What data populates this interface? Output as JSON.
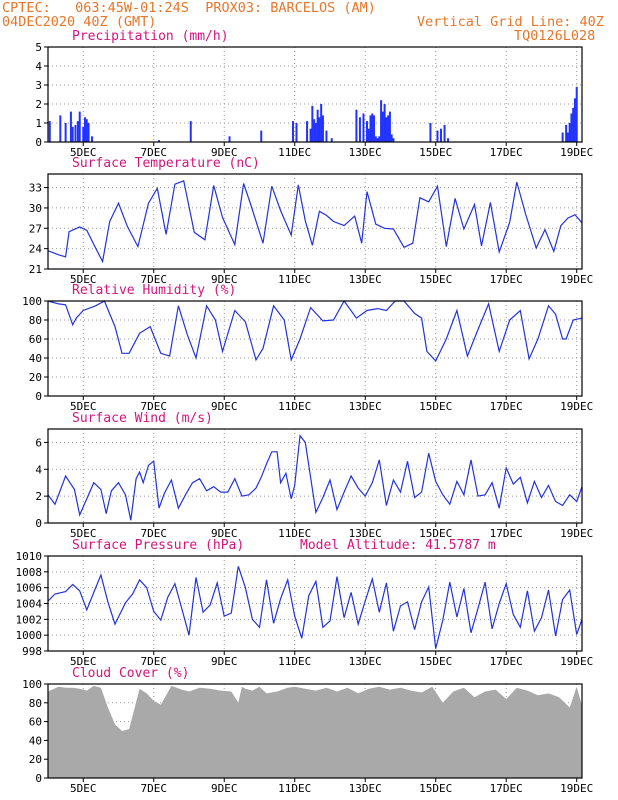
{
  "header": {
    "line1_left": "CPTEC:   063:45W-01:24S  PROX03: BARCELOS (AM)",
    "line2_left": "04DEC2020 40Z (GMT)",
    "line2_right": "Vertical Grid Line: 40Z",
    "line3_right": "TQ0126L028"
  },
  "date_ticks": [
    "5DEC",
    "7DEC",
    "9DEC",
    "11DEC",
    "13DEC",
    "15DEC",
    "17DEC",
    "19DEC"
  ],
  "colors": {
    "line": "#2233dd",
    "bar": "#2233ff",
    "cloud": "#a9a9a9",
    "title": "#d4147e",
    "header": "#e8762a"
  },
  "chart_data": [
    {
      "type": "bar",
      "title": "Precipitation (mm/h)",
      "ylim": [
        0,
        5
      ],
      "yticks": [
        0,
        1,
        2,
        3,
        4,
        5
      ],
      "x_range_days": [
        4.0,
        19.15
      ],
      "x": [
        4.05,
        4.35,
        4.5,
        4.65,
        4.7,
        4.78,
        4.85,
        4.9,
        5.0,
        5.05,
        5.1,
        5.15,
        5.25,
        7.15,
        8.05,
        9.15,
        10.05,
        10.95,
        11.05,
        11.35,
        11.45,
        11.5,
        11.55,
        11.6,
        11.65,
        11.7,
        11.75,
        11.8,
        11.9,
        12.05,
        12.75,
        12.85,
        12.95,
        13.05,
        13.1,
        13.15,
        13.2,
        13.25,
        13.3,
        13.35,
        13.4,
        13.45,
        13.5,
        13.55,
        13.6,
        13.65,
        13.7,
        13.75,
        13.8,
        14.85,
        15.05,
        15.15,
        15.25,
        15.35,
        18.6,
        18.7,
        18.75,
        18.8,
        18.85,
        18.9,
        18.95,
        19.0
      ],
      "values": [
        1.1,
        1.4,
        1.0,
        1.6,
        0.8,
        0.9,
        1.1,
        1.6,
        0.8,
        1.3,
        1.2,
        1.0,
        0.3,
        0.1,
        1.1,
        0.3,
        0.6,
        1.1,
        1.0,
        1.1,
        0.7,
        1.9,
        1.2,
        1.0,
        1.7,
        1.3,
        2.0,
        1.4,
        0.6,
        0.2,
        1.7,
        1.3,
        1.5,
        1.1,
        0.7,
        1.4,
        1.5,
        1.4,
        0.3,
        0.2,
        0.3,
        2.2,
        1.6,
        2.0,
        1.3,
        1.4,
        1.6,
        0.4,
        0.2,
        1.0,
        0.6,
        0.7,
        0.9,
        0.2,
        0.5,
        0.9,
        0.5,
        1.0,
        1.5,
        1.8,
        2.3,
        2.9
      ]
    },
    {
      "type": "line",
      "title": "Surface Temperature (nC)",
      "ylim": [
        21,
        35
      ],
      "yticks": [
        21,
        24,
        27,
        30,
        33
      ],
      "x_range_days": [
        4.0,
        19.15
      ],
      "x": [
        4.0,
        4.3,
        4.5,
        4.6,
        4.9,
        5.1,
        5.35,
        5.55,
        5.75,
        6.0,
        6.25,
        6.55,
        6.85,
        7.1,
        7.35,
        7.6,
        7.85,
        8.15,
        8.45,
        8.7,
        8.95,
        9.3,
        9.55,
        9.75,
        10.1,
        10.35,
        10.6,
        10.9,
        11.1,
        11.3,
        11.5,
        11.7,
        11.9,
        12.1,
        12.4,
        12.7,
        12.9,
        13.05,
        13.3,
        13.55,
        13.8,
        14.1,
        14.35,
        14.55,
        14.8,
        15.05,
        15.3,
        15.55,
        15.8,
        16.1,
        16.3,
        16.55,
        16.8,
        17.1,
        17.3,
        17.55,
        17.85,
        18.1,
        18.35,
        18.55,
        18.75,
        18.95,
        19.15
      ],
      "values": [
        23.7,
        23.1,
        22.8,
        26.5,
        27.2,
        26.7,
        24.1,
        22.1,
        28.0,
        30.7,
        27.3,
        24.3,
        30.7,
        32.9,
        26.1,
        33.5,
        34.0,
        26.4,
        25.3,
        33.3,
        28.6,
        24.6,
        33.6,
        30.5,
        24.8,
        33.2,
        29.6,
        26.0,
        33.4,
        28.1,
        24.5,
        29.5,
        28.9,
        28.0,
        27.4,
        28.8,
        24.8,
        32.4,
        27.6,
        27.0,
        26.9,
        24.2,
        24.8,
        31.5,
        30.9,
        33.2,
        24.3,
        31.4,
        26.9,
        30.5,
        24.4,
        30.8,
        23.5,
        27.9,
        33.8,
        29.1,
        24.1,
        26.8,
        23.6,
        27.4,
        28.5,
        29.0,
        27.8
      ]
    },
    {
      "type": "line",
      "title": "Relative Humidity (%)",
      "ylim": [
        0,
        100
      ],
      "yticks": [
        0,
        20,
        40,
        60,
        80,
        100
      ],
      "x_range_days": [
        4.0,
        19.15
      ],
      "x": [
        4.0,
        4.3,
        4.5,
        4.7,
        4.8,
        5.0,
        5.35,
        5.6,
        5.9,
        6.1,
        6.3,
        6.6,
        6.9,
        7.2,
        7.45,
        7.7,
        7.95,
        8.2,
        8.5,
        8.75,
        8.95,
        9.3,
        9.6,
        9.9,
        10.1,
        10.4,
        10.7,
        10.9,
        11.15,
        11.45,
        11.8,
        12.1,
        12.4,
        12.75,
        13.05,
        13.35,
        13.6,
        13.85,
        14.1,
        14.4,
        14.6,
        14.75,
        15.0,
        15.3,
        15.6,
        15.9,
        16.2,
        16.5,
        16.8,
        17.1,
        17.4,
        17.65,
        17.9,
        18.2,
        18.4,
        18.6,
        18.7,
        18.9,
        19.15
      ],
      "values": [
        100,
        97,
        96,
        75,
        82,
        90,
        95,
        100,
        73,
        45,
        45,
        66,
        73,
        45,
        42,
        95,
        65,
        40,
        95,
        80,
        47,
        90,
        78,
        38,
        50,
        95,
        80,
        38,
        60,
        93,
        79,
        80,
        100,
        82,
        90,
        92,
        90,
        100,
        100,
        87,
        82,
        47,
        37,
        60,
        90,
        42,
        70,
        97,
        47,
        80,
        90,
        39,
        60,
        95,
        86,
        60,
        60,
        80,
        82
      ]
    },
    {
      "type": "line",
      "title": "Surface Wind (m/s)",
      "ylim": [
        0,
        7
      ],
      "yticks": [
        0,
        2,
        4,
        6
      ],
      "x_range_days": [
        4.0,
        19.15
      ],
      "x": [
        4.0,
        4.2,
        4.4,
        4.5,
        4.6,
        4.75,
        4.9,
        5.1,
        5.3,
        5.5,
        5.65,
        5.8,
        6.0,
        6.2,
        6.35,
        6.5,
        6.6,
        6.7,
        6.85,
        7.0,
        7.15,
        7.3,
        7.5,
        7.7,
        7.9,
        8.1,
        8.3,
        8.5,
        8.7,
        8.9,
        9.1,
        9.3,
        9.5,
        9.7,
        9.9,
        10.05,
        10.2,
        10.35,
        10.5,
        10.6,
        10.75,
        10.9,
        11.0,
        11.15,
        11.3,
        11.45,
        11.6,
        11.8,
        12.0,
        12.2,
        12.4,
        12.6,
        12.8,
        13.0,
        13.2,
        13.4,
        13.6,
        13.8,
        14.0,
        14.2,
        14.4,
        14.6,
        14.8,
        15.0,
        15.2,
        15.4,
        15.6,
        15.8,
        16.0,
        16.2,
        16.4,
        16.6,
        16.8,
        17.0,
        17.2,
        17.4,
        17.6,
        17.8,
        18.0,
        18.2,
        18.4,
        18.6,
        18.8,
        19.0,
        19.15
      ],
      "values": [
        2.1,
        1.4,
        2.8,
        3.5,
        3.1,
        2.5,
        0.6,
        1.8,
        3.0,
        2.5,
        0.7,
        2.4,
        3.0,
        2.1,
        0.2,
        3.3,
        3.8,
        3.0,
        4.3,
        4.6,
        1.1,
        2.2,
        3.2,
        1.1,
        2.1,
        3.0,
        3.3,
        2.4,
        2.7,
        2.3,
        2.3,
        3.3,
        2.0,
        2.1,
        2.6,
        3.4,
        4.4,
        5.3,
        5.3,
        3.0,
        3.7,
        1.8,
        2.8,
        6.5,
        6.0,
        3.4,
        0.8,
        1.9,
        3.2,
        1.0,
        2.3,
        3.5,
        2.6,
        2.0,
        3.0,
        4.7,
        1.3,
        3.2,
        2.3,
        4.6,
        1.9,
        2.3,
        5.2,
        3.1,
        2.1,
        1.4,
        3.1,
        2.1,
        4.7,
        2.0,
        2.1,
        3.0,
        1.1,
        4.1,
        2.9,
        3.4,
        1.5,
        3.1,
        1.9,
        2.8,
        1.6,
        1.3,
        2.1,
        1.6,
        2.7
      ]
    },
    {
      "type": "line",
      "title": "Surface Pressure (hPa)",
      "annotation": "Model Altitude: 41.5787 m",
      "ylim": [
        998,
        1010
      ],
      "yticks": [
        998,
        1000,
        1002,
        1004,
        1006,
        1008,
        1010
      ],
      "x_range_days": [
        4.0,
        19.15
      ],
      "x": [
        4.0,
        4.2,
        4.5,
        4.7,
        4.9,
        5.1,
        5.3,
        5.5,
        5.7,
        5.9,
        6.2,
        6.4,
        6.6,
        6.8,
        7.0,
        7.2,
        7.4,
        7.6,
        7.8,
        8.0,
        8.2,
        8.4,
        8.6,
        8.8,
        9.0,
        9.2,
        9.4,
        9.6,
        9.8,
        10.0,
        10.2,
        10.4,
        10.6,
        10.8,
        11.0,
        11.2,
        11.4,
        11.6,
        11.8,
        12.0,
        12.2,
        12.4,
        12.6,
        12.8,
        13.0,
        13.2,
        13.4,
        13.6,
        13.8,
        14.0,
        14.2,
        14.4,
        14.6,
        14.8,
        15.0,
        15.2,
        15.4,
        15.6,
        15.8,
        16.0,
        16.2,
        16.4,
        16.6,
        16.8,
        17.0,
        17.2,
        17.4,
        17.6,
        17.8,
        18.0,
        18.2,
        18.4,
        18.6,
        18.8,
        19.0,
        19.15
      ],
      "values": [
        1004.3,
        1005.2,
        1005.5,
        1006.4,
        1005.6,
        1003.2,
        1005.4,
        1007.6,
        1004.2,
        1001.4,
        1004.1,
        1005.2,
        1007.0,
        1006.0,
        1003.0,
        1001.9,
        1004.8,
        1006.5,
        1003.3,
        1000.0,
        1007.3,
        1002.9,
        1003.8,
        1006.6,
        1002.4,
        1002.8,
        1008.7,
        1006.0,
        1002.0,
        1001.0,
        1007.0,
        1001.5,
        1004.6,
        1007.0,
        1002.4,
        999.6,
        1005.0,
        1006.8,
        1001.0,
        1001.8,
        1007.4,
        1002.2,
        1005.4,
        1001.4,
        1004.3,
        1007.1,
        1002.9,
        1006.6,
        1000.5,
        1003.7,
        1004.2,
        1000.7,
        1004.2,
        1006.1,
        998.3,
        1001.9,
        1006.7,
        1002.3,
        1005.9,
        1000.3,
        1003.4,
        1006.7,
        1000.8,
        1004.0,
        1006.5,
        1002.6,
        1001.0,
        1005.6,
        1000.5,
        1002.2,
        1005.7,
        999.9,
        1004.5,
        1005.7,
        1000.1,
        1002.0
      ]
    },
    {
      "type": "area",
      "title": "Cloud Cover (%)",
      "ylim": [
        0,
        100
      ],
      "yticks": [
        0,
        20,
        40,
        60,
        80,
        100
      ],
      "x_range_days": [
        4.0,
        19.15
      ],
      "x": [
        4.0,
        4.3,
        4.5,
        4.7,
        4.9,
        5.1,
        5.3,
        5.5,
        5.7,
        5.9,
        6.1,
        6.3,
        6.6,
        6.8,
        7.0,
        7.2,
        7.5,
        7.8,
        8.0,
        8.3,
        8.6,
        8.9,
        9.2,
        9.4,
        9.5,
        9.6,
        9.8,
        10.0,
        10.2,
        10.5,
        10.8,
        11.0,
        11.3,
        11.6,
        11.9,
        12.2,
        12.5,
        12.8,
        13.1,
        13.4,
        13.7,
        14.0,
        14.3,
        14.6,
        14.9,
        15.2,
        15.5,
        15.8,
        16.1,
        16.4,
        16.7,
        17.0,
        17.3,
        17.6,
        17.9,
        18.2,
        18.5,
        18.8,
        19.0,
        19.15
      ],
      "values": [
        92,
        97,
        96,
        96,
        95,
        93,
        98,
        96,
        75,
        57,
        50,
        52,
        95,
        90,
        82,
        78,
        98,
        94,
        92,
        96,
        95,
        93,
        92,
        80,
        97,
        95,
        93,
        97,
        90,
        92,
        96,
        97,
        95,
        93,
        96,
        92,
        96,
        90,
        95,
        97,
        94,
        96,
        93,
        91,
        97,
        80,
        92,
        96,
        86,
        92,
        94,
        84,
        96,
        93,
        88,
        90,
        86,
        75,
        97,
        77
      ]
    }
  ]
}
